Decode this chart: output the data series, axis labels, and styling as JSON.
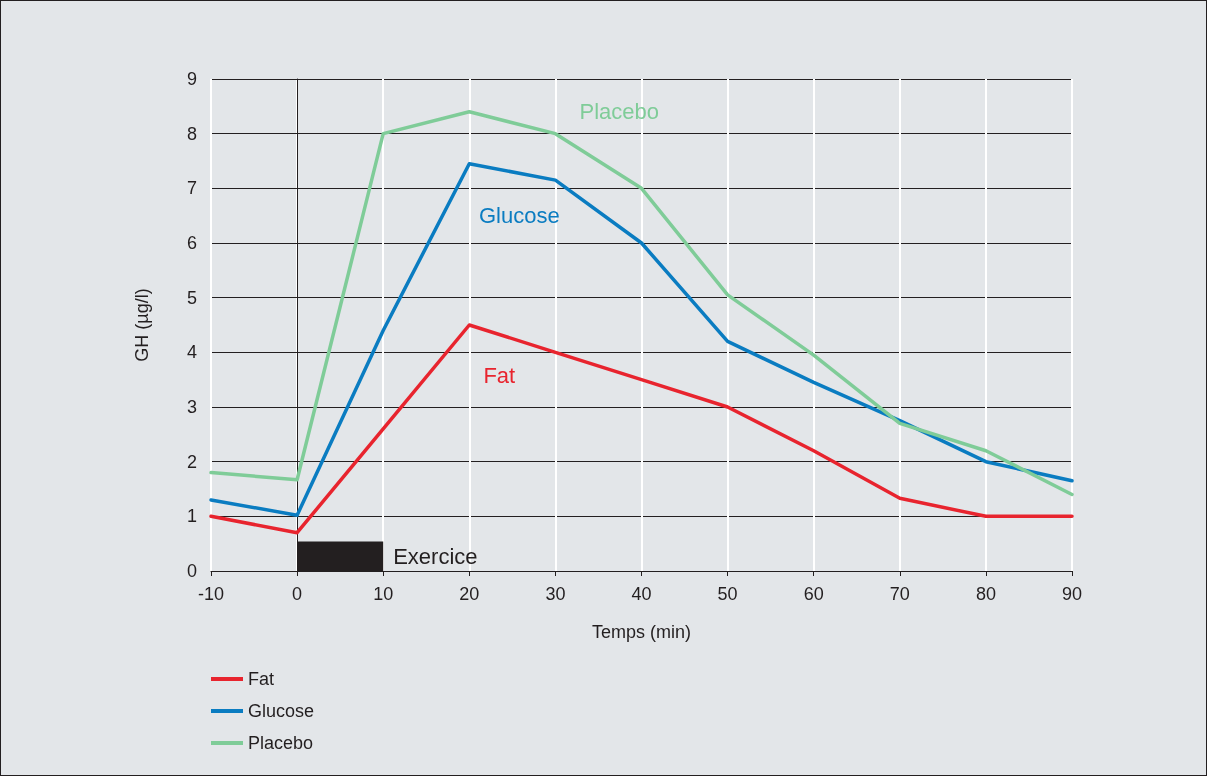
{
  "chart_data": {
    "type": "line",
    "xlabel": "Temps (min)",
    "ylabel": "GH (µg/l)",
    "x": [
      -10,
      0,
      10,
      20,
      30,
      40,
      50,
      60,
      70,
      80,
      90
    ],
    "series": [
      {
        "name": "Fat",
        "color": "#e8242e",
        "values": [
          1.0,
          0.7,
          2.6,
          4.5,
          4.0,
          3.5,
          3.0,
          2.2,
          1.33,
          1.0,
          1.0
        ]
      },
      {
        "name": "Glucose",
        "color": "#0a7cc1",
        "values": [
          1.3,
          1.02,
          4.4,
          7.45,
          7.15,
          6.0,
          4.2,
          3.45,
          2.75,
          2.0,
          1.65
        ]
      },
      {
        "name": "Placebo",
        "color": "#7fcc98",
        "values": [
          1.8,
          1.67,
          8.0,
          8.4,
          8.0,
          7.0,
          5.05,
          3.95,
          2.7,
          2.2,
          1.4
        ]
      }
    ],
    "bands": [
      {
        "axis": "x",
        "from": 0,
        "to": 10,
        "label": "Exercice",
        "color": "#231f20"
      }
    ],
    "xlim": [
      -10,
      90
    ],
    "xticks": [
      -10,
      0,
      10,
      20,
      30,
      40,
      50,
      60,
      70,
      80,
      90
    ],
    "ylim": [
      0,
      9
    ],
    "yticks": [
      0,
      1,
      2,
      3,
      4,
      5,
      6,
      7,
      8,
      9
    ],
    "grid": true,
    "legend": "bottom left",
    "marker": "none",
    "line_style": "solid"
  }
}
